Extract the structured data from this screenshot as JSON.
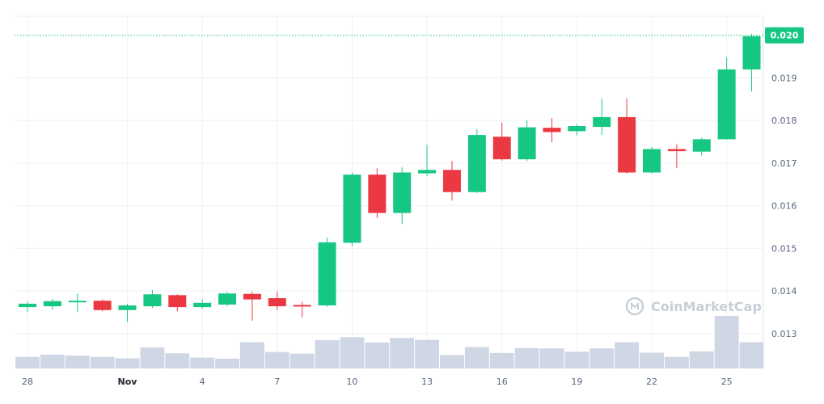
{
  "chart_data": {
    "type": "candlestick",
    "title": "",
    "xlabel": "",
    "ylabel": "",
    "ylim": [
      0.01218,
      0.02045
    ],
    "grid": true,
    "current_price": 0.02,
    "current_price_label": "0.020",
    "y_ticks": [
      {
        "value": 0.013,
        "label": "0.013"
      },
      {
        "value": 0.014,
        "label": "0.014"
      },
      {
        "value": 0.015,
        "label": "0.015"
      },
      {
        "value": 0.016,
        "label": "0.016"
      },
      {
        "value": 0.017,
        "label": "0.017"
      },
      {
        "value": 0.018,
        "label": "0.018"
      },
      {
        "value": 0.019,
        "label": "0.019"
      }
    ],
    "x_ticks": [
      {
        "index": 0,
        "label": "28"
      },
      {
        "index": 4,
        "label": "Nov"
      },
      {
        "index": 7,
        "label": "4"
      },
      {
        "index": 10,
        "label": "7"
      },
      {
        "index": 13,
        "label": "10"
      },
      {
        "index": 16,
        "label": "13"
      },
      {
        "index": 19,
        "label": "16"
      },
      {
        "index": 22,
        "label": "19"
      },
      {
        "index": 25,
        "label": "22"
      },
      {
        "index": 28,
        "label": "25"
      }
    ],
    "candles": [
      {
        "open": 0.01362,
        "close": 0.0137,
        "high": 0.01375,
        "low": 0.0135
      },
      {
        "open": 0.01364,
        "close": 0.01376,
        "high": 0.01381,
        "low": 0.01357
      },
      {
        "open": 0.01374,
        "close": 0.01377,
        "high": 0.01393,
        "low": 0.0135
      },
      {
        "open": 0.01377,
        "close": 0.01355,
        "high": 0.0138,
        "low": 0.01352
      },
      {
        "open": 0.01355,
        "close": 0.01366,
        "high": 0.0137,
        "low": 0.01327
      },
      {
        "open": 0.01364,
        "close": 0.01392,
        "high": 0.01402,
        "low": 0.0136
      },
      {
        "open": 0.0139,
        "close": 0.01362,
        "high": 0.01392,
        "low": 0.01352
      },
      {
        "open": 0.01362,
        "close": 0.01372,
        "high": 0.0138,
        "low": 0.01358
      },
      {
        "open": 0.01368,
        "close": 0.01394,
        "high": 0.01398,
        "low": 0.01364
      },
      {
        "open": 0.01393,
        "close": 0.0138,
        "high": 0.01398,
        "low": 0.0133
      },
      {
        "open": 0.01383,
        "close": 0.01364,
        "high": 0.01399,
        "low": 0.01355
      },
      {
        "open": 0.01367,
        "close": 0.01366,
        "high": 0.01375,
        "low": 0.01338
      },
      {
        "open": 0.01366,
        "close": 0.01514,
        "high": 0.01525,
        "low": 0.01363
      },
      {
        "open": 0.01513,
        "close": 0.01673,
        "high": 0.01678,
        "low": 0.01505
      },
      {
        "open": 0.01673,
        "close": 0.01583,
        "high": 0.01688,
        "low": 0.01571
      },
      {
        "open": 0.01583,
        "close": 0.01678,
        "high": 0.0169,
        "low": 0.01557
      },
      {
        "open": 0.01676,
        "close": 0.01684,
        "high": 0.01743,
        "low": 0.0167
      },
      {
        "open": 0.01684,
        "close": 0.01632,
        "high": 0.01705,
        "low": 0.01612
      },
      {
        "open": 0.01632,
        "close": 0.01766,
        "high": 0.0178,
        "low": 0.0163
      },
      {
        "open": 0.01762,
        "close": 0.01709,
        "high": 0.01795,
        "low": 0.01706
      },
      {
        "open": 0.01709,
        "close": 0.01784,
        "high": 0.01801,
        "low": 0.01705
      },
      {
        "open": 0.01783,
        "close": 0.01773,
        "high": 0.01806,
        "low": 0.01749
      },
      {
        "open": 0.01775,
        "close": 0.01787,
        "high": 0.01792,
        "low": 0.01765
      },
      {
        "open": 0.01785,
        "close": 0.01808,
        "high": 0.01852,
        "low": 0.01766
      },
      {
        "open": 0.01808,
        "close": 0.01678,
        "high": 0.01852,
        "low": 0.01676
      },
      {
        "open": 0.01678,
        "close": 0.01733,
        "high": 0.01738,
        "low": 0.01676
      },
      {
        "open": 0.01733,
        "close": 0.01728,
        "high": 0.01744,
        "low": 0.01688
      },
      {
        "open": 0.01727,
        "close": 0.01756,
        "high": 0.0176,
        "low": 0.01718
      },
      {
        "open": 0.01756,
        "close": 0.0192,
        "high": 0.01948,
        "low": 0.01755
      },
      {
        "open": 0.0192,
        "close": 0.01998,
        "high": 0.02003,
        "low": 0.01868
      }
    ],
    "volumes": [
      0.35,
      0.42,
      0.39,
      0.35,
      0.31,
      0.64,
      0.46,
      0.33,
      0.3,
      0.8,
      0.5,
      0.45,
      0.86,
      0.95,
      0.79,
      0.93,
      0.87,
      0.41,
      0.65,
      0.47,
      0.62,
      0.61,
      0.51,
      0.61,
      0.8,
      0.48,
      0.35,
      0.52,
      1.6,
      0.8
    ],
    "colors": {
      "up": "#16c784",
      "down": "#ea3943",
      "volume": "#cfd6e4",
      "grid": "#eff2f5",
      "axis_text": "#58667e",
      "price_line": "#16c784"
    }
  },
  "watermark": {
    "text": "CoinMarketCap"
  }
}
